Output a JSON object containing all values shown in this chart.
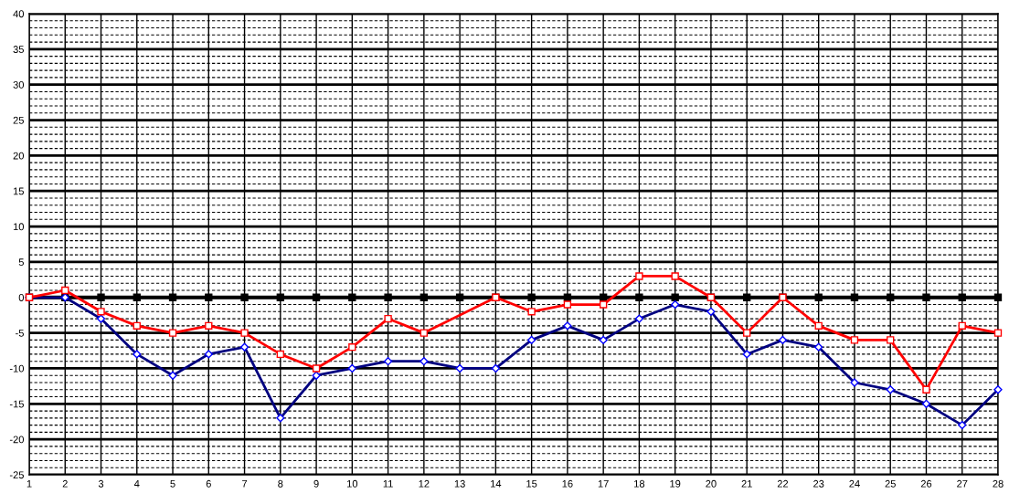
{
  "chart_data": {
    "type": "line",
    "categories": [
      "1",
      "2",
      "3",
      "4",
      "5",
      "6",
      "7",
      "8",
      "9",
      "10",
      "11",
      "12",
      "13",
      "14",
      "15",
      "16",
      "17",
      "18",
      "19",
      "20",
      "21",
      "22",
      "23",
      "24",
      "25",
      "26",
      "27",
      "28"
    ],
    "series": [
      {
        "color": "#000000",
        "marker": "square",
        "values": [
          0,
          0,
          0,
          0,
          0,
          0,
          0,
          0,
          0,
          0,
          0,
          0,
          0,
          0,
          0,
          0,
          0,
          0,
          0,
          0,
          0,
          0,
          0,
          0,
          0,
          0,
          0,
          0
        ]
      },
      {
        "color": "#000080",
        "marker": "diamond",
        "values": [
          0,
          0,
          -3,
          -8,
          -11,
          -8,
          -7,
          -17,
          -11,
          -10,
          -9,
          -9,
          -10,
          -10,
          -6,
          -4,
          -6,
          -3,
          -1,
          -2,
          -8,
          -6,
          -7,
          -12,
          -13,
          -15,
          -18,
          -13
        ]
      },
      {
        "color": "#ff0000",
        "marker": "square",
        "values": [
          0,
          1,
          -2,
          -4,
          -5,
          -4,
          -5,
          -8,
          -10,
          -7,
          -3,
          -5,
          null,
          0,
          -2,
          -1,
          -1,
          3,
          3,
          0,
          -5,
          0,
          -4,
          -6,
          -6,
          -13,
          -4,
          -5
        ]
      }
    ],
    "ylim": [
      -25,
      40
    ],
    "yticks": [
      -25,
      {
        "value": -24,
        "label": null
      },
      {
        "value": -23,
        "label": null
      },
      {
        "value": -22,
        "label": null
      },
      {
        "value": -21,
        "label": null
      },
      -20,
      {
        "value": -19,
        "label": null
      },
      {
        "value": -18,
        "label": null
      },
      {
        "value": -17,
        "label": null
      },
      {
        "value": -16,
        "label": null
      },
      -15,
      {
        "value": -14,
        "label": null
      },
      {
        "value": -13,
        "label": null
      },
      {
        "value": -12,
        "label": null
      },
      {
        "value": -11,
        "label": null
      },
      -10,
      {
        "value": -9,
        "label": null
      },
      {
        "value": -8,
        "label": null
      },
      {
        "value": -7,
        "label": null
      },
      {
        "value": -6,
        "label": null
      },
      -5,
      {
        "value": -4,
        "label": null
      },
      {
        "value": -3,
        "label": null
      },
      {
        "value": -2,
        "label": null
      },
      {
        "value": -1,
        "label": null
      },
      0,
      {
        "value": 1,
        "label": null
      },
      {
        "value": 2,
        "label": null
      },
      {
        "value": 3,
        "label": null
      },
      {
        "value": 4,
        "label": null
      },
      5,
      {
        "value": 6,
        "label": null
      },
      {
        "value": 7,
        "label": null
      },
      {
        "value": 8,
        "label": null
      },
      {
        "value": 9,
        "label": null
      },
      10,
      {
        "value": 11,
        "label": null
      },
      {
        "value": 12,
        "label": null
      },
      {
        "value": 13,
        "label": null
      },
      {
        "value": 14,
        "label": null
      },
      15,
      {
        "value": 16,
        "label": null
      },
      {
        "value": 17,
        "label": null
      },
      {
        "value": 18,
        "label": null
      },
      {
        "value": 19,
        "label": null
      },
      20,
      {
        "value": 21,
        "label": null
      },
      {
        "value": 22,
        "label": null
      },
      {
        "value": 23,
        "label": null
      },
      {
        "value": 24,
        "label": null
      },
      25,
      {
        "value": 26,
        "label": null
      },
      {
        "value": 27,
        "label": null
      },
      {
        "value": 28,
        "label": null
      },
      {
        "value": 29,
        "label": null
      },
      30,
      {
        "value": 31,
        "label": null
      },
      {
        "value": 32,
        "label": null
      },
      {
        "value": 33,
        "label": null
      },
      {
        "value": 34,
        "label": null
      },
      35,
      {
        "value": 36,
        "label": null
      },
      {
        "value": 37,
        "label": null
      },
      {
        "value": 38,
        "label": null
      },
      {
        "value": 39,
        "label": null
      },
      40
    ],
    "grid": true,
    "line_style": "solid"
  }
}
